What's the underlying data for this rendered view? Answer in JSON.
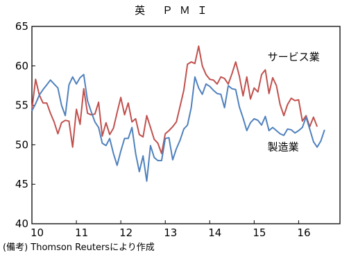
{
  "chart_data": {
    "type": "line",
    "title": "英 ＰＭＩ",
    "note": "(備考) Thomson Reutersにより作成",
    "x_ticks": [
      "10",
      "11",
      "12",
      "13",
      "14",
      "15",
      "16"
    ],
    "y_ticks": [
      "40",
      "45",
      "50",
      "55",
      "60",
      "65"
    ],
    "ylim": [
      40,
      65
    ],
    "x_start": 2010.0,
    "x_step": 0.08333333,
    "grid": false,
    "series": [
      {
        "name": "サービス業",
        "color": "#c0504d",
        "values": [
          54.5,
          58.3,
          56.3,
          55.3,
          55.3,
          54.0,
          52.9,
          51.4,
          52.8,
          53.1,
          53.0,
          49.7,
          54.5,
          52.6,
          57.1,
          54.0,
          53.8,
          53.9,
          55.4,
          51.1,
          52.8,
          51.3,
          52.1,
          54.1,
          56.0,
          53.8,
          55.3,
          52.9,
          53.3,
          51.3,
          51.0,
          53.7,
          52.2,
          50.7,
          50.2,
          48.9,
          51.4,
          51.8,
          52.3,
          52.9,
          54.9,
          56.9,
          60.2,
          60.5,
          60.3,
          62.5,
          60.0,
          58.9,
          58.3,
          58.2,
          57.7,
          58.6,
          58.4,
          57.7,
          59.0,
          60.5,
          58.7,
          56.2,
          58.6,
          55.8,
          57.2,
          56.7,
          58.9,
          59.5,
          56.5,
          58.5,
          57.5,
          55.1,
          53.7,
          55.1,
          55.9,
          55.6,
          55.7,
          53.0,
          53.7,
          52.3,
          53.5,
          52.3
        ],
        "label_x": 2015.3,
        "label_y": 60.7
      },
      {
        "name": "製造業",
        "color": "#4f81bd",
        "values": [
          54.3,
          55.2,
          56.3,
          57.0,
          57.6,
          58.2,
          57.7,
          57.2,
          55.0,
          53.7,
          57.6,
          58.6,
          57.7,
          58.5,
          58.9,
          55.6,
          54.2,
          52.9,
          52.2,
          50.2,
          49.9,
          50.8,
          48.9,
          47.4,
          49.2,
          50.8,
          50.8,
          52.2,
          48.9,
          46.6,
          48.6,
          45.4,
          49.9,
          48.4,
          48.0,
          48.0,
          50.8,
          50.9,
          48.1,
          49.5,
          50.6,
          52.0,
          52.5,
          54.7,
          58.6,
          57.2,
          56.4,
          57.7,
          57.4,
          56.9,
          56.5,
          56.4,
          54.7,
          57.5,
          57.1,
          57.0,
          54.8,
          53.4,
          51.8,
          52.8,
          53.3,
          53.1,
          52.5,
          53.6,
          51.8,
          52.2,
          51.8,
          51.4,
          51.2,
          52.0,
          51.9,
          51.5,
          51.8,
          52.2,
          53.5,
          52.0,
          50.4,
          49.7,
          50.5,
          51.9
        ],
        "label_x": 2015.3,
        "label_y": 49.3
      }
    ]
  }
}
